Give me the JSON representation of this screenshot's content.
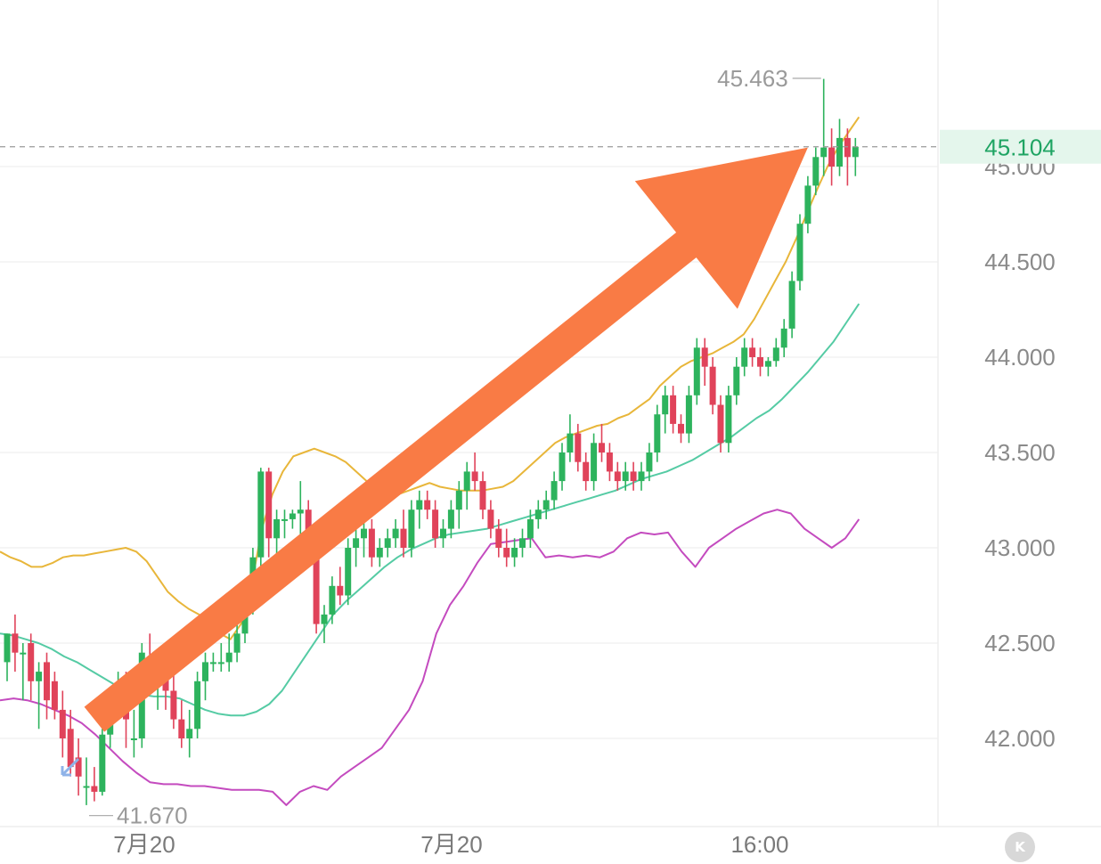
{
  "chart_data": {
    "type": "candlestick",
    "title": "",
    "y_axis": {
      "ticks": [
        "42.000",
        "42.500",
        "43.000",
        "43.500",
        "44.000",
        "44.500",
        "45.000"
      ],
      "range": [
        41.5,
        45.8
      ]
    },
    "x_axis": {
      "ticks": [
        "7月20",
        "7月20",
        "16:00"
      ]
    },
    "current_price": "45.104",
    "high_marker": "45.463",
    "low_marker": "41.670",
    "colors": {
      "up": "#2db35d",
      "down": "#e0435a",
      "upper_band": "#e8b63a",
      "middle_band": "#55cba4",
      "lower_band": "#c44bbf",
      "arrow": "#f97b45",
      "current": "#1fa463"
    },
    "candles": [
      [
        42.4,
        42.55,
        42.3,
        42.55
      ],
      [
        42.55,
        42.65,
        42.35,
        42.45
      ],
      [
        42.45,
        42.5,
        42.2,
        42.45
      ],
      [
        42.5,
        42.55,
        42.2,
        42.3
      ],
      [
        42.3,
        42.4,
        42.05,
        42.35
      ],
      [
        42.4,
        42.45,
        42.1,
        42.2
      ],
      [
        42.3,
        42.35,
        42.1,
        42.15
      ],
      [
        42.15,
        42.25,
        41.9,
        42.0
      ],
      [
        42.05,
        42.15,
        41.8,
        41.85
      ],
      [
        41.9,
        42.0,
        41.7,
        41.8
      ],
      [
        41.75,
        41.9,
        41.65,
        41.75
      ],
      [
        41.75,
        41.85,
        41.67,
        41.72
      ],
      [
        41.72,
        42.05,
        41.7,
        42.02
      ],
      [
        42.02,
        42.25,
        41.95,
        42.2
      ],
      [
        42.2,
        42.35,
        42.1,
        42.28
      ],
      [
        42.28,
        42.35,
        41.95,
        42.1
      ],
      [
        42.0,
        42.15,
        41.9,
        42.0
      ],
      [
        42.0,
        42.5,
        41.95,
        42.45
      ],
      [
        42.4,
        42.55,
        42.25,
        42.3
      ],
      [
        42.3,
        42.45,
        42.15,
        42.35
      ],
      [
        42.35,
        42.45,
        42.15,
        42.25
      ],
      [
        42.25,
        42.35,
        42.05,
        42.1
      ],
      [
        42.1,
        42.2,
        41.95,
        42.0
      ],
      [
        42.0,
        42.15,
        41.9,
        42.05
      ],
      [
        42.05,
        42.35,
        42.0,
        42.3
      ],
      [
        42.3,
        42.45,
        42.2,
        42.4
      ],
      [
        42.4,
        42.45,
        42.35,
        42.4
      ],
      [
        42.4,
        42.5,
        42.35,
        42.4
      ],
      [
        42.4,
        42.55,
        42.35,
        42.45
      ],
      [
        42.45,
        42.6,
        42.4,
        42.55
      ],
      [
        42.55,
        42.75,
        42.5,
        42.7
      ],
      [
        42.7,
        43.0,
        42.65,
        42.95
      ],
      [
        42.95,
        43.42,
        42.9,
        43.4
      ],
      [
        43.4,
        43.42,
        42.95,
        43.05
      ],
      [
        43.05,
        43.2,
        42.95,
        43.15
      ],
      [
        43.15,
        43.2,
        43.05,
        43.15
      ],
      [
        43.15,
        43.2,
        43.1,
        43.18
      ],
      [
        43.18,
        43.35,
        43.05,
        43.2
      ],
      [
        43.2,
        43.25,
        43.0,
        43.05
      ],
      [
        43.05,
        43.1,
        42.55,
        42.6
      ],
      [
        42.6,
        42.7,
        42.5,
        42.65
      ],
      [
        42.65,
        42.85,
        42.6,
        42.8
      ],
      [
        42.8,
        42.9,
        42.7,
        42.75
      ],
      [
        42.75,
        43.05,
        42.7,
        43.0
      ],
      [
        43.0,
        43.1,
        42.9,
        43.05
      ],
      [
        43.05,
        43.15,
        42.95,
        43.1
      ],
      [
        43.1,
        43.15,
        42.9,
        42.95
      ],
      [
        42.95,
        43.05,
        42.9,
        43.0
      ],
      [
        43.0,
        43.1,
        42.95,
        43.05
      ],
      [
        43.05,
        43.15,
        43.0,
        43.1
      ],
      [
        43.1,
        43.2,
        42.95,
        43.0
      ],
      [
        43.0,
        43.25,
        42.95,
        43.2
      ],
      [
        43.2,
        43.3,
        43.1,
        43.25
      ],
      [
        43.25,
        43.3,
        43.15,
        43.2
      ],
      [
        43.2,
        43.25,
        43.0,
        43.05
      ],
      [
        43.05,
        43.15,
        43.0,
        43.1
      ],
      [
        43.1,
        43.25,
        43.05,
        43.2
      ],
      [
        43.2,
        43.35,
        43.1,
        43.3
      ],
      [
        43.3,
        43.45,
        43.2,
        43.4
      ],
      [
        43.4,
        43.5,
        43.3,
        43.35
      ],
      [
        43.35,
        43.4,
        43.15,
        43.2
      ],
      [
        43.2,
        43.25,
        43.05,
        43.1
      ],
      [
        43.1,
        43.15,
        42.95,
        43.0
      ],
      [
        43.0,
        43.1,
        42.9,
        42.95
      ],
      [
        42.95,
        43.05,
        42.9,
        43.0
      ],
      [
        43.0,
        43.1,
        42.95,
        43.05
      ],
      [
        43.05,
        43.2,
        43.0,
        43.15
      ],
      [
        43.15,
        43.25,
        43.1,
        43.2
      ],
      [
        43.2,
        43.3,
        43.15,
        43.25
      ],
      [
        43.25,
        43.4,
        43.2,
        43.35
      ],
      [
        43.35,
        43.55,
        43.3,
        43.5
      ],
      [
        43.5,
        43.7,
        43.45,
        43.6
      ],
      [
        43.6,
        43.65,
        43.4,
        43.45
      ],
      [
        43.45,
        43.5,
        43.3,
        43.35
      ],
      [
        43.35,
        43.6,
        43.3,
        43.55
      ],
      [
        43.55,
        43.65,
        43.45,
        43.5
      ],
      [
        43.5,
        43.55,
        43.35,
        43.4
      ],
      [
        43.4,
        43.45,
        43.3,
        43.35
      ],
      [
        43.35,
        43.45,
        43.3,
        43.4
      ],
      [
        43.4,
        43.45,
        43.3,
        43.35
      ],
      [
        43.35,
        43.45,
        43.3,
        43.4
      ],
      [
        43.4,
        43.55,
        43.35,
        43.5
      ],
      [
        43.5,
        43.75,
        43.45,
        43.7
      ],
      [
        43.7,
        43.85,
        43.6,
        43.8
      ],
      [
        43.8,
        43.85,
        43.6,
        43.65
      ],
      [
        43.65,
        43.7,
        43.55,
        43.6
      ],
      [
        43.6,
        43.85,
        43.55,
        43.8
      ],
      [
        43.8,
        44.1,
        43.75,
        44.05
      ],
      [
        44.05,
        44.1,
        43.85,
        43.95
      ],
      [
        43.95,
        44.0,
        43.7,
        43.75
      ],
      [
        43.75,
        43.8,
        43.5,
        43.55
      ],
      [
        43.55,
        43.85,
        43.5,
        43.8
      ],
      [
        43.8,
        44.0,
        43.75,
        43.95
      ],
      [
        43.95,
        44.1,
        43.9,
        44.05
      ],
      [
        44.05,
        44.1,
        43.95,
        44.0
      ],
      [
        44.0,
        44.05,
        43.9,
        43.95
      ],
      [
        43.95,
        44.0,
        43.9,
        43.98
      ],
      [
        43.98,
        44.1,
        43.95,
        44.05
      ],
      [
        44.05,
        44.2,
        44.0,
        44.15
      ],
      [
        44.15,
        44.45,
        44.1,
        44.4
      ],
      [
        44.4,
        44.75,
        44.35,
        44.7
      ],
      [
        44.7,
        44.95,
        44.65,
        44.9
      ],
      [
        44.9,
        45.1,
        44.85,
        45.05
      ],
      [
        45.05,
        45.46,
        44.95,
        45.1
      ],
      [
        45.1,
        45.2,
        44.9,
        45.0
      ],
      [
        45.0,
        45.25,
        44.95,
        45.15
      ],
      [
        45.15,
        45.2,
        44.9,
        45.05
      ],
      [
        45.05,
        45.15,
        44.95,
        45.104
      ]
    ],
    "upper_band": [
      42.98,
      42.95,
      42.93,
      42.9,
      42.9,
      42.92,
      42.95,
      42.96,
      42.96,
      42.97,
      42.98,
      42.99,
      43.0,
      42.98,
      42.93,
      42.85,
      42.77,
      42.72,
      42.68,
      42.65,
      42.62,
      42.55,
      42.52,
      42.6,
      42.8,
      43.1,
      43.28,
      43.4,
      43.48,
      43.5,
      43.52,
      43.5,
      43.48,
      43.45,
      43.4,
      43.35,
      43.32,
      43.3,
      43.28,
      43.3,
      43.32,
      43.34,
      43.32,
      43.31,
      43.3,
      43.3,
      43.3,
      43.31,
      43.32,
      43.35,
      43.4,
      43.45,
      43.5,
      43.55,
      43.58,
      43.6,
      43.62,
      43.64,
      43.65,
      43.68,
      43.7,
      43.74,
      43.78,
      43.85,
      43.9,
      43.95,
      43.98,
      44.0,
      44.02,
      44.05,
      44.08,
      44.12,
      44.2,
      44.3,
      44.4,
      44.5,
      44.62,
      44.75,
      44.88,
      45.0,
      45.1,
      45.18,
      45.26
    ],
    "middle_band": [
      42.55,
      42.54,
      42.52,
      42.5,
      42.47,
      42.43,
      42.4,
      42.36,
      42.32,
      42.28,
      42.25,
      42.23,
      42.22,
      42.22,
      42.21,
      42.18,
      42.15,
      42.13,
      42.12,
      42.12,
      42.14,
      42.18,
      42.25,
      42.35,
      42.45,
      42.55,
      42.65,
      42.72,
      42.78,
      42.84,
      42.9,
      42.95,
      42.99,
      43.02,
      43.05,
      43.07,
      43.08,
      43.09,
      43.1,
      43.12,
      43.14,
      43.16,
      43.18,
      43.2,
      43.22,
      43.24,
      43.26,
      43.28,
      43.3,
      43.33,
      43.36,
      43.38,
      43.4,
      43.43,
      43.46,
      43.5,
      43.54,
      43.58,
      43.63,
      43.68,
      43.72,
      43.78,
      43.85,
      43.92,
      44.0,
      44.08,
      44.18,
      44.28
    ],
    "lower_band": [
      42.2,
      42.21,
      42.2,
      42.18,
      42.15,
      42.12,
      42.08,
      42.02,
      41.95,
      41.88,
      41.82,
      41.77,
      41.76,
      41.76,
      41.75,
      41.75,
      41.74,
      41.73,
      41.73,
      41.73,
      41.72,
      41.65,
      41.72,
      41.75,
      41.73,
      41.8,
      41.85,
      41.9,
      41.95,
      42.05,
      42.15,
      42.3,
      42.55,
      42.7,
      42.8,
      42.92,
      43.02,
      43.03,
      43.04,
      43.05,
      42.95,
      42.96,
      42.95,
      42.96,
      42.95,
      42.98,
      43.05,
      43.08,
      43.07,
      43.08,
      42.98,
      42.9,
      43.0,
      43.05,
      43.1,
      43.14,
      43.18,
      43.2,
      43.18,
      43.1,
      43.05,
      43.0,
      43.05,
      43.15
    ],
    "arrow": {
      "from": [
        11,
        42.1
      ],
      "to": [
        101,
        45.1
      ]
    }
  },
  "controls": {
    "k_button_label": "K"
  }
}
